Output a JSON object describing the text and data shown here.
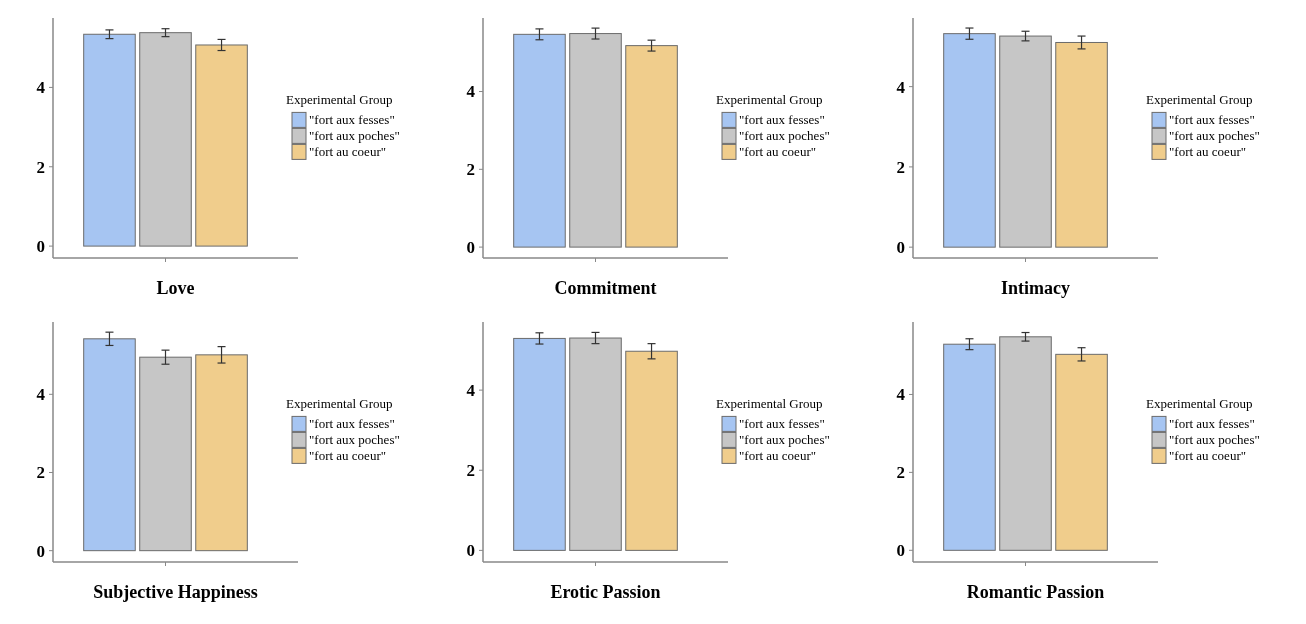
{
  "chart_data": [
    {
      "type": "bar",
      "xlabel": "Love",
      "legend_title": "Experimental Group",
      "legend": "right",
      "categories": [
        null
      ],
      "ylim": [
        -0.3,
        5.75
      ],
      "yticks": [
        0,
        2,
        4
      ],
      "series": [
        {
          "name": "\"fort aux fesses\"",
          "color": "#a6c5f2",
          "values": [
            5.34
          ],
          "errors": [
            0.11
          ]
        },
        {
          "name": "\"fort aux poches\"",
          "color": "#c6c6c6",
          "values": [
            5.38
          ],
          "errors": [
            0.1
          ]
        },
        {
          "name": "\"fort au coeur\"",
          "color": "#f0cd8c",
          "values": [
            5.07
          ],
          "errors": [
            0.14
          ]
        }
      ]
    },
    {
      "type": "bar",
      "xlabel": "Commitment",
      "legend_title": "Experimental Group",
      "legend": "right",
      "categories": [
        null
      ],
      "ylim": [
        -0.28,
        5.89
      ],
      "yticks": [
        0,
        2,
        4
      ],
      "series": [
        {
          "name": "\"fort aux fesses\"",
          "color": "#a6c5f2",
          "values": [
            5.47
          ],
          "errors": [
            0.14
          ]
        },
        {
          "name": "\"fort aux poches\"",
          "color": "#c6c6c6",
          "values": [
            5.49
          ],
          "errors": [
            0.14
          ]
        },
        {
          "name": "\"fort au coeur\"",
          "color": "#f0cd8c",
          "values": [
            5.18
          ],
          "errors": [
            0.14
          ]
        }
      ]
    },
    {
      "type": "bar",
      "xlabel": "Intimacy",
      "legend_title": "Experimental Group",
      "legend": "right",
      "categories": [
        null
      ],
      "ylim": [
        -0.27,
        5.71
      ],
      "yticks": [
        0,
        2,
        4
      ],
      "series": [
        {
          "name": "\"fort aux fesses\"",
          "color": "#a6c5f2",
          "values": [
            5.32
          ],
          "errors": [
            0.14
          ]
        },
        {
          "name": "\"fort aux poches\"",
          "color": "#c6c6c6",
          "values": [
            5.26
          ],
          "errors": [
            0.12
          ]
        },
        {
          "name": "\"fort au coeur\"",
          "color": "#f0cd8c",
          "values": [
            5.1
          ],
          "errors": [
            0.16
          ]
        }
      ]
    },
    {
      "type": "bar",
      "xlabel": "Subjective Happiness",
      "legend_title": "Experimental Group",
      "legend": "right",
      "categories": [
        null
      ],
      "ylim": [
        -0.29,
        5.85
      ],
      "yticks": [
        0,
        2,
        4
      ],
      "series": [
        {
          "name": "\"fort aux fesses\"",
          "color": "#a6c5f2",
          "values": [
            5.42
          ],
          "errors": [
            0.17
          ]
        },
        {
          "name": "\"fort aux poches\"",
          "color": "#c6c6c6",
          "values": [
            4.95
          ],
          "errors": [
            0.18
          ]
        },
        {
          "name": "\"fort au coeur\"",
          "color": "#f0cd8c",
          "values": [
            5.01
          ],
          "errors": [
            0.21
          ]
        }
      ]
    },
    {
      "type": "bar",
      "xlabel": "Erotic Passion",
      "legend_title": "Experimental Group",
      "legend": "right",
      "categories": [
        null
      ],
      "ylim": [
        -0.29,
        5.7
      ],
      "yticks": [
        0,
        2,
        4
      ],
      "series": [
        {
          "name": "\"fort aux fesses\"",
          "color": "#a6c5f2",
          "values": [
            5.29
          ],
          "errors": [
            0.14
          ]
        },
        {
          "name": "\"fort aux poches\"",
          "color": "#c6c6c6",
          "values": [
            5.3
          ],
          "errors": [
            0.14
          ]
        },
        {
          "name": "\"fort au coeur\"",
          "color": "#f0cd8c",
          "values": [
            4.97
          ],
          "errors": [
            0.19
          ]
        }
      ]
    },
    {
      "type": "bar",
      "xlabel": "Romantic Passion",
      "legend_title": "Experimental Group",
      "legend": "right",
      "categories": [
        null
      ],
      "ylim": [
        -0.3,
        5.86
      ],
      "yticks": [
        0,
        2,
        4
      ],
      "series": [
        {
          "name": "\"fort aux fesses\"",
          "color": "#a6c5f2",
          "values": [
            5.29
          ],
          "errors": [
            0.14
          ]
        },
        {
          "name": "\"fort aux poches\"",
          "color": "#c6c6c6",
          "values": [
            5.48
          ],
          "errors": [
            0.11
          ]
        },
        {
          "name": "\"fort au coeur\"",
          "color": "#f0cd8c",
          "values": [
            5.03
          ],
          "errors": [
            0.17
          ]
        }
      ]
    }
  ]
}
